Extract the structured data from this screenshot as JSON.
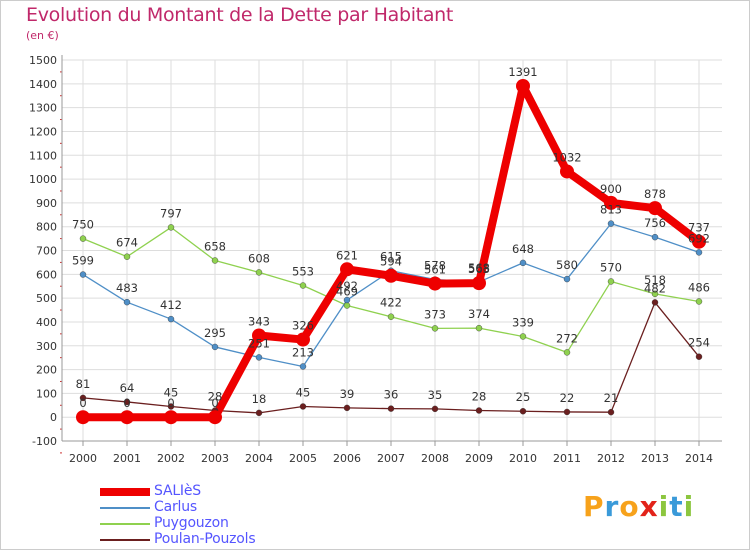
{
  "title": "Evolution du Montant de la Dette par Habitant",
  "unit_label": "(en €)",
  "logo": {
    "letters": [
      "P",
      "r",
      "o",
      "x",
      "i",
      "t",
      "i"
    ],
    "colors": [
      "#f7a21b",
      "#3a9ad9",
      "#f7a21b",
      "#e2231a",
      "#8cc63f",
      "#3a9ad9",
      "#8cc63f"
    ]
  },
  "colors": {
    "title": "#c0286a",
    "legend_text": "#5555ff"
  },
  "chart_data": {
    "type": "line",
    "title": "Evolution du Montant de la Dette par Habitant",
    "ylabel": "(en €)",
    "xlabel": "",
    "ylim": [
      -100,
      1500
    ],
    "y_ticks": [
      -100,
      0,
      100,
      200,
      300,
      400,
      500,
      600,
      700,
      800,
      900,
      1000,
      1100,
      1200,
      1300,
      1400,
      1500
    ],
    "grid": true,
    "legend_position": "bottom-left",
    "categories": [
      "2000",
      "2001",
      "2002",
      "2003",
      "2004",
      "2005",
      "2006",
      "2007",
      "2008",
      "2009",
      "2010",
      "2011",
      "2012",
      "2013",
      "2014"
    ],
    "series": [
      {
        "name": "SALIèS",
        "color": "#ee0000",
        "values": [
          0,
          0,
          0,
          0,
          343,
          326,
          621,
          594,
          561,
          563,
          1391,
          1032,
          900,
          878,
          737
        ],
        "labels": [
          "0",
          "0",
          "0",
          "0",
          "343",
          "326",
          "621",
          "594",
          "561",
          "563",
          "1391",
          "1032",
          "900",
          "878",
          "737"
        ]
      },
      {
        "name": "Carlus",
        "color": "#4f8fc7",
        "values": [
          599,
          483,
          412,
          295,
          251,
          213,
          492,
          615,
          578,
          568,
          648,
          580,
          813,
          756,
          692
        ],
        "labels": [
          "599",
          "483",
          "412",
          "295",
          "251",
          "213",
          "492",
          "615",
          "578",
          "568",
          "648",
          "580",
          "813",
          "756",
          "692"
        ]
      },
      {
        "name": "Puygouzon",
        "color": "#8fd14f",
        "values": [
          750,
          674,
          797,
          658,
          608,
          553,
          469,
          422,
          373,
          374,
          339,
          272,
          570,
          518,
          486
        ],
        "labels": [
          "750",
          "674",
          "797",
          "658",
          "608",
          "553",
          "469",
          "422",
          "373",
          "374",
          "339",
          "272",
          "570",
          "518",
          "486"
        ]
      },
      {
        "name": "Poulan-Pouzols",
        "color": "#6b1f1f",
        "values": [
          81,
          64,
          45,
          28,
          18,
          45,
          39,
          36,
          35,
          28,
          25,
          22,
          21,
          482,
          254
        ],
        "labels": [
          "81",
          "64",
          "45",
          "28",
          "18",
          "45",
          "39",
          "36",
          "35",
          "28",
          "25",
          "22",
          "21",
          "482",
          "254"
        ]
      }
    ]
  }
}
